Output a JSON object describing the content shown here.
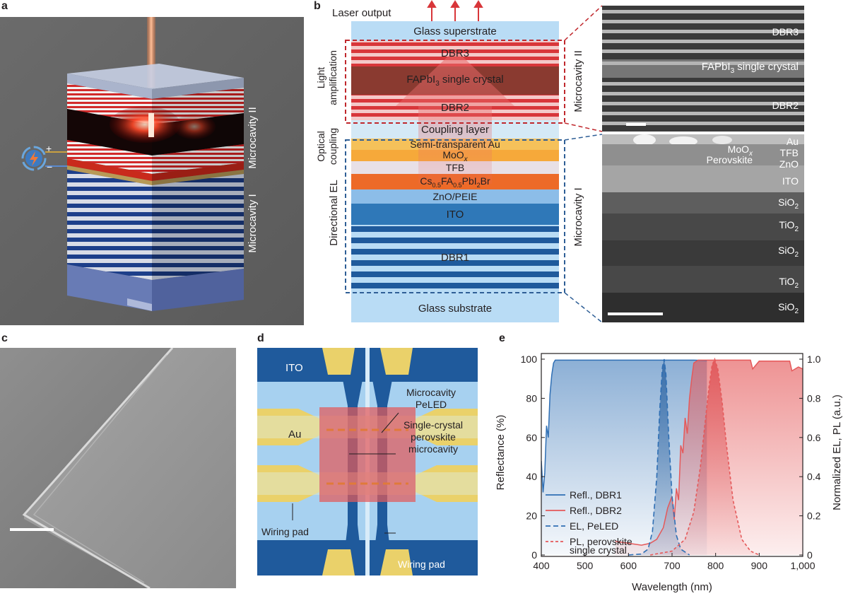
{
  "panels": {
    "a": {
      "letter": "a",
      "microcavity_2": "Microcavity II",
      "microcavity_1": "Microcavity I",
      "plus": "+",
      "minus": "−"
    },
    "b": {
      "letter": "b",
      "laser_output": "Laser output",
      "layers": {
        "glass_superstrate": "Glass superstrate",
        "dbr3": "DBR3",
        "crystal_main": "FAPbI",
        "crystal_sub": "3",
        "crystal_rest": " single crystal",
        "dbr2": "DBR2",
        "coupling_layer": "Coupling layer",
        "semi_au": "Semi-transparent Au",
        "moox_main": "MoO",
        "moox_sub": "x",
        "tfb": "TFB",
        "cs_a": "Cs",
        "cs_b": "0.5",
        "cs_c": "FA",
        "cs_d": "0.5",
        "cs_e": "PbI",
        "cs_f": "2",
        "cs_g": "Br",
        "zno_peie": "ZnO/PEIE",
        "ito": "ITO",
        "dbr1": "DBR1",
        "glass_substrate": "Glass substrate"
      },
      "side_labels": {
        "light_amp_1": "Light",
        "light_amp_2": "amplification",
        "optical_1": "Optical",
        "optical_2": "coupling",
        "directional_el": "Directional EL"
      },
      "microcavity_2": "Microcavity II",
      "microcavity_1": "Microcavity I",
      "sem_top": {
        "dbr3": "DBR3",
        "crystal_main": "FAPbI",
        "crystal_sub": "3",
        "crystal_rest": " single crystal",
        "dbr2": "DBR2"
      },
      "sem_bottom": {
        "au": "Au",
        "moox_main": "MoO",
        "moox_sub": "x",
        "tfb": "TFB",
        "perovskite": "Perovskite",
        "zno": "ZnO",
        "ito": "ITO",
        "sio2_main": "SiO",
        "tio2_main": "TiO",
        "sub2": "2"
      }
    },
    "c": {
      "letter": "c"
    },
    "d": {
      "letter": "d",
      "ito": "ITO",
      "au": "Au",
      "microcavity_1": "Microcavity",
      "microcavity_2": "PeLED",
      "single_1": "Single-crystal",
      "single_2": "perovskite",
      "single_3": "microcavity",
      "wiring_pad_left": "Wiring pad",
      "wiring_pad_right": "Wiring pad"
    },
    "e": {
      "letter": "e",
      "ylabel_left": "Reflectance (%)",
      "ylabel_right": "Normalized EL, PL (a.u.)",
      "xlabel": "Wavelength (nm)",
      "x_ticks": [
        "400",
        "500",
        "600",
        "700",
        "800",
        "900",
        "1,000"
      ],
      "y_left_ticks": [
        "0",
        "20",
        "40",
        "60",
        "80",
        "100"
      ],
      "y_right_ticks": [
        "0",
        "0.2",
        "0.4",
        "0.6",
        "0.8",
        "1.0"
      ],
      "legend": [
        "Refl., DBR1",
        "Refl., DBR2",
        "EL, PeLED",
        "PL, perovskite",
        "single crystal"
      ]
    }
  },
  "colors": {
    "glass": "#b9dcf5",
    "dbr_red": "#d8363a",
    "crystal": "#8a3a30",
    "gold": "#f5c15a",
    "orange": "#ed6a28",
    "ito_blue": "#2f78b8",
    "zno_blue": "#8cbde8",
    "navy": "#1f5a9c",
    "cyan": "#a7d1f0",
    "refl_dbr1": "#2f6fb4",
    "refl_dbr2": "#e5595a"
  },
  "chart_data": {
    "type": "line",
    "title": "",
    "xlabel": "Wavelength (nm)",
    "ylabel": "Reflectance (%)",
    "ylabel_right": "Normalized EL, PL (a.u.)",
    "xlim": [
      400,
      1000
    ],
    "ylim": [
      0,
      100
    ],
    "ylim_right": [
      0,
      1.0
    ],
    "grid": false,
    "legend_position": "bottom-left",
    "series": [
      {
        "name": "Refl., DBR1",
        "axis": "left",
        "style": "solid",
        "color": "#2f6fb4",
        "fill": true,
        "x": [
          400,
          404,
          408,
          412,
          416,
          420,
          424,
          428,
          432,
          440,
          460,
          500,
          550,
          600,
          650,
          700,
          750,
          780
        ],
        "y": [
          48,
          32,
          42,
          66,
          60,
          82,
          92,
          98,
          99.5,
          99.5,
          99.5,
          99.5,
          99.5,
          99.5,
          99.5,
          99.5,
          99.5,
          99.3
        ]
      },
      {
        "name": "Refl., DBR2",
        "axis": "left",
        "style": "solid",
        "color": "#e5595a",
        "fill": true,
        "x": [
          570,
          600,
          630,
          650,
          665,
          680,
          690,
          700,
          705,
          710,
          715,
          720,
          725,
          730,
          735,
          740,
          745,
          750,
          760,
          780,
          800,
          850,
          880,
          885,
          900,
          950,
          970,
          975,
          990,
          1000
        ],
        "y": [
          7,
          6,
          5,
          6,
          8,
          14,
          24,
          30,
          18,
          34,
          28,
          56,
          52,
          70,
          62,
          80,
          90,
          98,
          99.5,
          99.5,
          99.5,
          99.5,
          99.5,
          95,
          99,
          99,
          99,
          94,
          96,
          95
        ]
      },
      {
        "name": "EL, PeLED",
        "axis": "right",
        "style": "dashed",
        "color": "#2f6fb4",
        "fill": true,
        "x": [
          600,
          630,
          645,
          655,
          665,
          672,
          678,
          682,
          686,
          692,
          700,
          710,
          720,
          740
        ],
        "y": [
          0,
          0.005,
          0.03,
          0.12,
          0.4,
          0.75,
          0.96,
          1.0,
          0.92,
          0.62,
          0.3,
          0.1,
          0.03,
          0
        ]
      },
      {
        "name": "PL, perovskite single crystal",
        "axis": "right",
        "style": "dashed",
        "color": "#e5595a",
        "fill": true,
        "x": [
          650,
          700,
          730,
          750,
          765,
          775,
          785,
          792,
          798,
          805,
          815,
          825,
          840,
          860,
          880,
          900
        ],
        "y": [
          0,
          0.02,
          0.08,
          0.22,
          0.45,
          0.66,
          0.86,
          0.97,
          1.0,
          0.95,
          0.78,
          0.56,
          0.28,
          0.08,
          0.02,
          0
        ]
      }
    ]
  }
}
